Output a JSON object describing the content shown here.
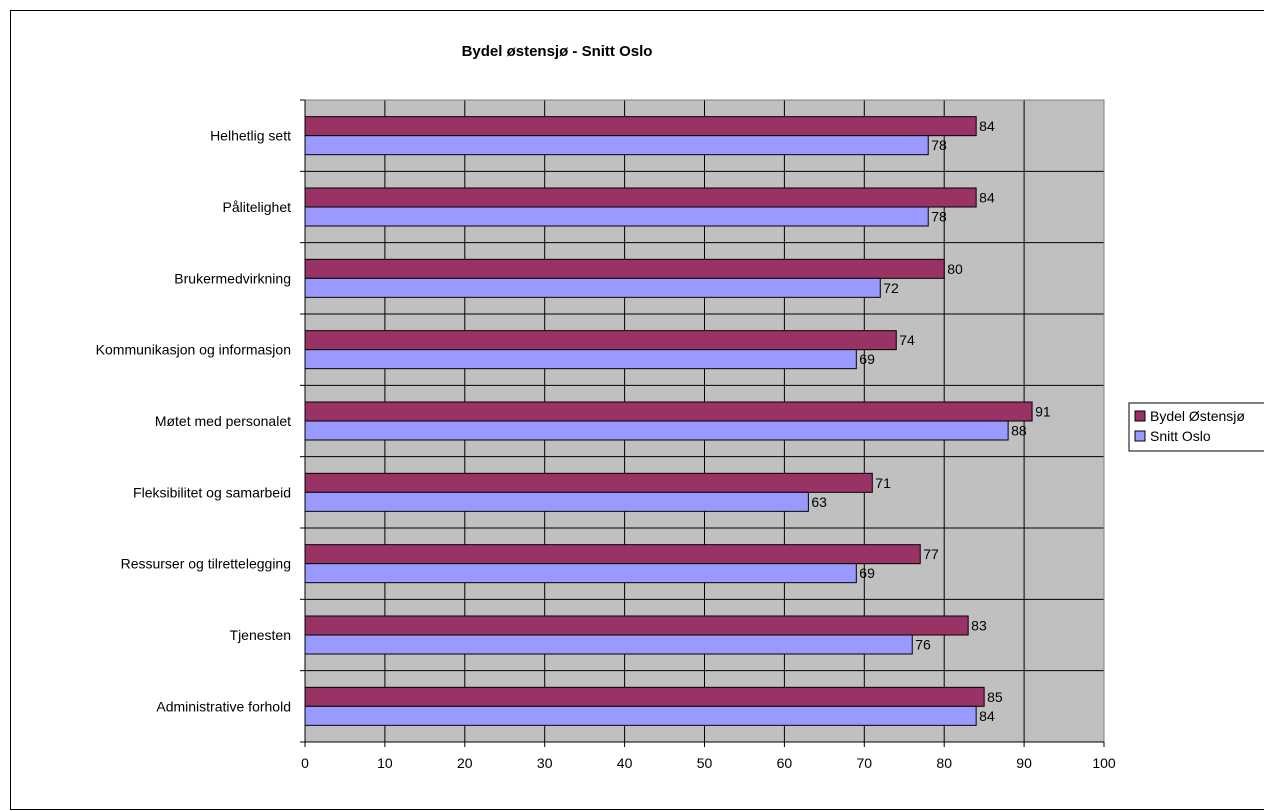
{
  "chart_data": {
    "type": "bar",
    "orientation": "horizontal",
    "title": "Bydel østensjø - Snitt Oslo",
    "categories": [
      "Helhetlig sett",
      "Pålitelighet",
      "Brukermedvirkning",
      "Kommunikasjon og informasjon",
      "Møtet med personalet",
      "Fleksibilitet og samarbeid",
      "Ressurser og tilrettelegging",
      "Tjenesten",
      "Administrative forhold"
    ],
    "series": [
      {
        "name": "Bydel Østensjø",
        "color": "#993366",
        "values": [
          84,
          84,
          80,
          74,
          91,
          71,
          77,
          83,
          85
        ]
      },
      {
        "name": "Snitt Oslo",
        "color": "#9999ff",
        "values": [
          78,
          78,
          72,
          69,
          88,
          63,
          69,
          76,
          84
        ]
      }
    ],
    "xlim": [
      0,
      100
    ],
    "xticks": [
      "0",
      "10",
      "20",
      "30",
      "40",
      "50",
      "60",
      "70",
      "80",
      "90",
      "100"
    ],
    "xlabel": "",
    "ylabel": "",
    "grid": "vertical",
    "shaded_region": [
      90,
      100
    ],
    "plot_background": "#c0c0c0",
    "legend_position": "right"
  }
}
